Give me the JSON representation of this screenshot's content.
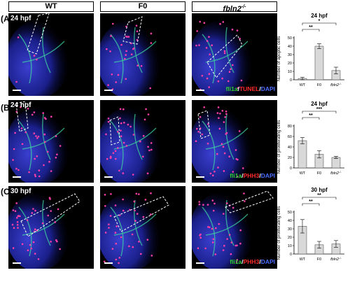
{
  "headers": {
    "wt": "WT",
    "f0": "F0",
    "mutant_base": "fbln2",
    "mutant_sup": "-/-"
  },
  "rows": [
    {
      "label": "(A)",
      "time": "24 hpf",
      "stain": {
        "green": "fli1a",
        "sep1": "/",
        "red": "TUNEL",
        "sep2": "/",
        "blue": "DAPI"
      }
    },
    {
      "label": "(B)",
      "time": "24 hpf",
      "stain": {
        "green": "fli1a",
        "sep1": "/",
        "red": "PHH3",
        "sep2": "/",
        "blue": "DAPI"
      }
    },
    {
      "label": "(C)",
      "time": "30 hpf",
      "stain": {
        "green": "fli1a",
        "sep1": "/",
        "red": "PHH3",
        "sep2": "/",
        "blue": "DAPI"
      }
    }
  ],
  "colors": {
    "bar_fill": "#d9d9d9",
    "bar_stroke": "#555555",
    "panel_bg": "#000000",
    "green": "#2fd22f",
    "red": "#ff2a2a",
    "blue": "#4a6cff"
  },
  "chart_data": [
    {
      "type": "bar",
      "title": "24 hpf",
      "categories": [
        "WT",
        "F0",
        "fbln2-/-"
      ],
      "values": [
        1.5,
        40,
        11
      ],
      "errors": [
        1.5,
        3,
        4
      ],
      "ylabel": "Number of apoptic cells",
      "ylim": [
        0,
        50
      ],
      "yticks": [
        0,
        10,
        20,
        30,
        40,
        50
      ],
      "significance": [
        {
          "from": 0,
          "to": 1,
          "label": "**"
        },
        {
          "from": 0,
          "to": 2,
          "label": "*"
        }
      ]
    },
    {
      "type": "bar",
      "title": "24 hpf",
      "categories": [
        "WT",
        "F0",
        "fbln2-/-"
      ],
      "values": [
        52,
        26,
        20
      ],
      "errors": [
        6,
        7,
        2
      ],
      "ylabel": "Number of proliferating cells",
      "ylim": [
        0,
        80
      ],
      "yticks": [
        0,
        20,
        40,
        60,
        80
      ],
      "significance": [
        {
          "from": 0,
          "to": 1,
          "label": "**"
        },
        {
          "from": 0,
          "to": 2,
          "label": "***"
        }
      ]
    },
    {
      "type": "bar",
      "title": "30 hpf",
      "categories": [
        "WT",
        "F0",
        "fbln2-/-"
      ],
      "values": [
        33,
        11,
        12
      ],
      "errors": [
        8,
        4,
        4
      ],
      "ylabel": "Number of proliferating cells",
      "ylim": [
        0,
        50
      ],
      "yticks": [
        0,
        10,
        20,
        30,
        40,
        50
      ],
      "significance": [
        {
          "from": 0,
          "to": 1,
          "label": "**"
        },
        {
          "from": 0,
          "to": 2,
          "label": "**"
        }
      ]
    }
  ]
}
